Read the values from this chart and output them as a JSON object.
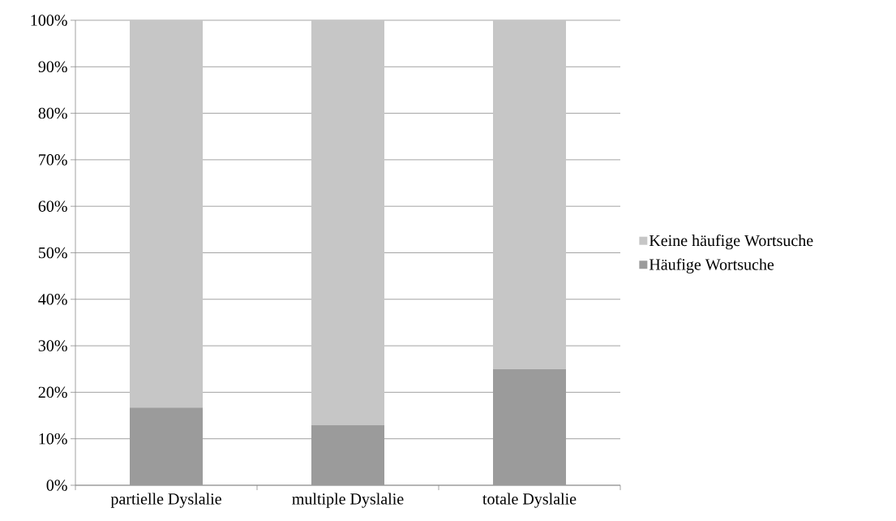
{
  "chart_data": {
    "type": "bar",
    "stacked": true,
    "categories": [
      "partielle Dyslalie",
      "multiple Dyslalie",
      "totale Dyslalie"
    ],
    "series": [
      {
        "name": "Häufige Wortsuche",
        "color": "#9b9b9b",
        "values": [
          16.7,
          12.9,
          25
        ]
      },
      {
        "name": "Keine häufige Wortsuche",
        "color": "#c6c6c6",
        "values": [
          83.3,
          87.1,
          75
        ]
      }
    ],
    "ylim": [
      0,
      100
    ],
    "yticks": [
      {
        "value": 0,
        "label": "0%"
      },
      {
        "value": 10,
        "label": "10%"
      },
      {
        "value": 20,
        "label": "20%"
      },
      {
        "value": 30,
        "label": "30%"
      },
      {
        "value": 40,
        "label": "40%"
      },
      {
        "value": 50,
        "label": "50%"
      },
      {
        "value": 60,
        "label": "60%"
      },
      {
        "value": 70,
        "label": "70%"
      },
      {
        "value": 80,
        "label": "80%"
      },
      {
        "value": 90,
        "label": "90%"
      },
      {
        "value": 100,
        "label": "100%"
      }
    ],
    "grid": "y",
    "legend": "right"
  }
}
